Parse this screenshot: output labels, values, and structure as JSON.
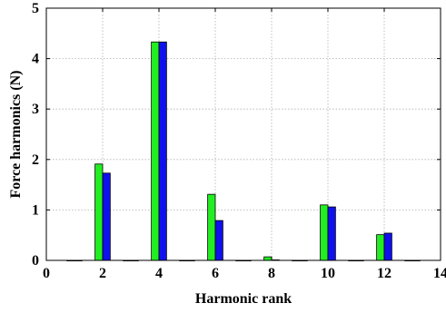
{
  "chart_data": {
    "type": "bar",
    "xlabel": "Harmonic rank",
    "ylabel": "Force harmonics (N)",
    "xlim": [
      0,
      14
    ],
    "ylim": [
      0,
      5
    ],
    "xticks": [
      "0",
      "2",
      "4",
      "6",
      "8",
      "10",
      "12",
      "14"
    ],
    "yticks": [
      "0",
      "1",
      "2",
      "3",
      "4",
      "5"
    ],
    "grid": true,
    "categories": [
      1,
      2,
      3,
      4,
      5,
      6,
      7,
      8,
      9,
      10,
      11,
      12,
      13
    ],
    "series": [
      {
        "color": "#22ee22",
        "values": [
          0,
          1.91,
          0,
          4.33,
          0,
          1.31,
          0,
          0.07,
          0,
          1.1,
          0,
          0.51,
          0
        ]
      },
      {
        "color": "#1010ee",
        "values": [
          0,
          1.73,
          0,
          4.33,
          0,
          0.79,
          0,
          0.01,
          0,
          1.06,
          0,
          0.54,
          0
        ]
      }
    ]
  }
}
